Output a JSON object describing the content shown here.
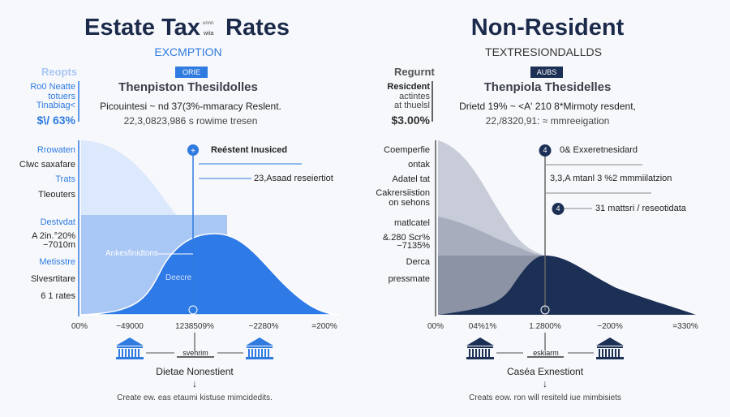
{
  "left": {
    "title_a": "Estate Tax",
    "title_small_1": "unnn",
    "title_small_2": "wita",
    "title_b": "Rates",
    "subtitle": "EXCMPTION",
    "side_heading": "Reopts",
    "badge": "ORIE",
    "heading": "Thenpiston Thesildolles",
    "line1": "Picouintesi ~ nd 37(3%-mmaracy Reslent.",
    "line2": "22,3,0823,986 s rowime tresen",
    "side": [
      "Ro0 Neatte",
      "totuers",
      "Tinabiag<"
    ],
    "side_value": "$\\/ 63%",
    "axis_labels": [
      "Rrowaten",
      "Clwc saxafare",
      "Trats",
      "Tleouters",
      "Destvdat",
      "A 2in.°20%",
      "−7010m",
      "Metisstre",
      "Slvesrtitare",
      "6 1 rates"
    ],
    "callout_1": "Reéstent Inusiced",
    "callout_2": "23,Asaad reseiertiot",
    "inner_1": "Ankesfinidtons",
    "inner_2": "Deecre",
    "ticks": [
      "00%",
      "−49000",
      "1238509%",
      "−2280%",
      "=200%"
    ],
    "connector": "svehrim",
    "footer_title": "Dietae Nonestient",
    "arrow": "↓",
    "footer_text": "Create ew. eas etaumi kistuse mimcidedits."
  },
  "right": {
    "title": "Non-Resident",
    "subtitle": "TEXTRESIONDALLDS",
    "side_heading": "Regurnt",
    "badge": "AUBS",
    "heading": "Thenpiola Thesidelles",
    "line1": "Drietd 19% ~ <A' 210 8*Mirmoty resdent,",
    "line2": "22,/8320,91: ≈ mmreeigation",
    "side": [
      "Resicdent",
      "actintes",
      "at thuelsl"
    ],
    "side_value": "$3.00%",
    "axis_labels": [
      "Coemperfie",
      "ontak",
      "Adatel tat",
      "Cakrersiistion",
      "on sehons",
      "matlcatel",
      "&.280 Scr%",
      "−7135%",
      "Derca",
      "pressmate"
    ],
    "marker_1": "4",
    "callout_1": "0& Exxeretnesidard",
    "callout_2": "3,3,A mtanl 3 %2 mmmiilatzion",
    "marker_2": "4",
    "callout_3": "31 mattsri / reseotidata",
    "ticks": [
      "00%",
      "04%1%",
      "1.2800%",
      "−200%",
      "=330%"
    ],
    "connector": "eskiarm",
    "footer_title": "Caséa Exnestiont",
    "arrow": "↓",
    "footer_text": "Creats eow. ron will resiteld iue mimbisiets"
  },
  "colors": {
    "blue": "#2f7be0",
    "navy": "#1c2f55"
  }
}
